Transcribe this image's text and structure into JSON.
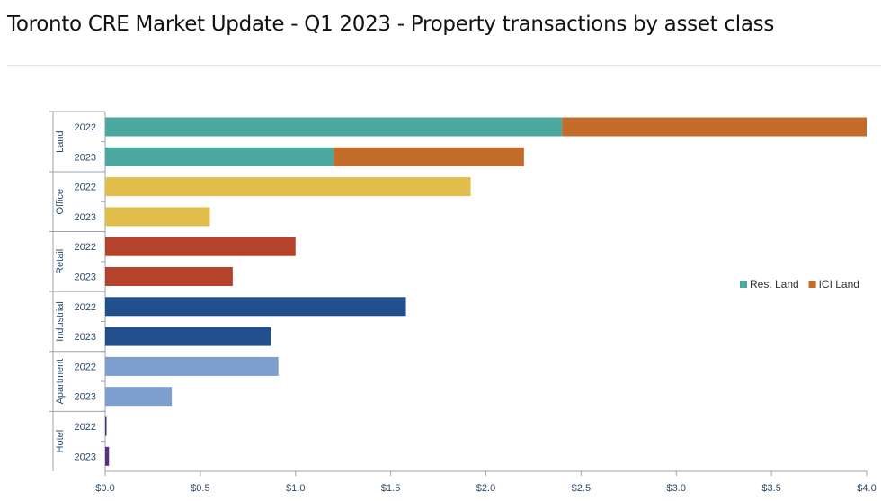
{
  "page": {
    "title": "Toronto CRE Market Update - Q1 2023 - Property transactions by asset class"
  },
  "chart_data": {
    "type": "bar",
    "orientation": "horizontal",
    "stacked": true,
    "title": "",
    "xlabel": "",
    "ylabel": "",
    "xlim": [
      0,
      4.0
    ],
    "x_ticks": [
      "$0.0",
      "$0.5",
      "$1.0",
      "$1.5",
      "$2.0",
      "$2.5",
      "$3.0",
      "$3.5",
      "$4.0"
    ],
    "x_tick_values": [
      0,
      0.5,
      1.0,
      1.5,
      2.0,
      2.5,
      3.0,
      3.5,
      4.0
    ],
    "grid": false,
    "legend_position": "right",
    "legend": [
      {
        "name": "Res. Land",
        "color": "#4aa89e"
      },
      {
        "name": "ICI Land",
        "color": "#c26b2a"
      }
    ],
    "groups": [
      {
        "name": "Land",
        "rows": [
          {
            "year": "2022",
            "segments": [
              {
                "series": "Res. Land",
                "value": 2.4,
                "color": "#4aa89e"
              },
              {
                "series": "ICI Land",
                "value": 1.6,
                "color": "#c26b2a"
              }
            ]
          },
          {
            "year": "2023",
            "segments": [
              {
                "series": "Res. Land",
                "value": 1.2,
                "color": "#4aa89e"
              },
              {
                "series": "ICI Land",
                "value": 1.0,
                "color": "#c26b2a"
              }
            ]
          }
        ]
      },
      {
        "name": "Office",
        "rows": [
          {
            "year": "2022",
            "segments": [
              {
                "value": 1.92,
                "color": "#e1be4c"
              }
            ]
          },
          {
            "year": "2023",
            "segments": [
              {
                "value": 0.55,
                "color": "#e1be4c"
              }
            ]
          }
        ]
      },
      {
        "name": "Retail",
        "rows": [
          {
            "year": "2022",
            "segments": [
              {
                "value": 1.0,
                "color": "#b5432c"
              }
            ]
          },
          {
            "year": "2023",
            "segments": [
              {
                "value": 0.67,
                "color": "#b5432c"
              }
            ]
          }
        ]
      },
      {
        "name": "Industrial",
        "rows": [
          {
            "year": "2022",
            "segments": [
              {
                "value": 1.58,
                "color": "#214f8c"
              }
            ]
          },
          {
            "year": "2023",
            "segments": [
              {
                "value": 0.87,
                "color": "#214f8c"
              }
            ]
          }
        ]
      },
      {
        "name": "Apartment",
        "rows": [
          {
            "year": "2022",
            "segments": [
              {
                "value": 0.91,
                "color": "#7d9fd0"
              }
            ]
          },
          {
            "year": "2023",
            "segments": [
              {
                "value": 0.35,
                "color": "#7d9fd0"
              }
            ]
          }
        ]
      },
      {
        "name": "Hotel",
        "rows": [
          {
            "year": "2022",
            "segments": [
              {
                "value": 0.005,
                "color": "#4a2e6e"
              }
            ]
          },
          {
            "year": "2023",
            "segments": [
              {
                "value": 0.02,
                "color": "#5c2d82"
              }
            ]
          }
        ]
      }
    ]
  }
}
